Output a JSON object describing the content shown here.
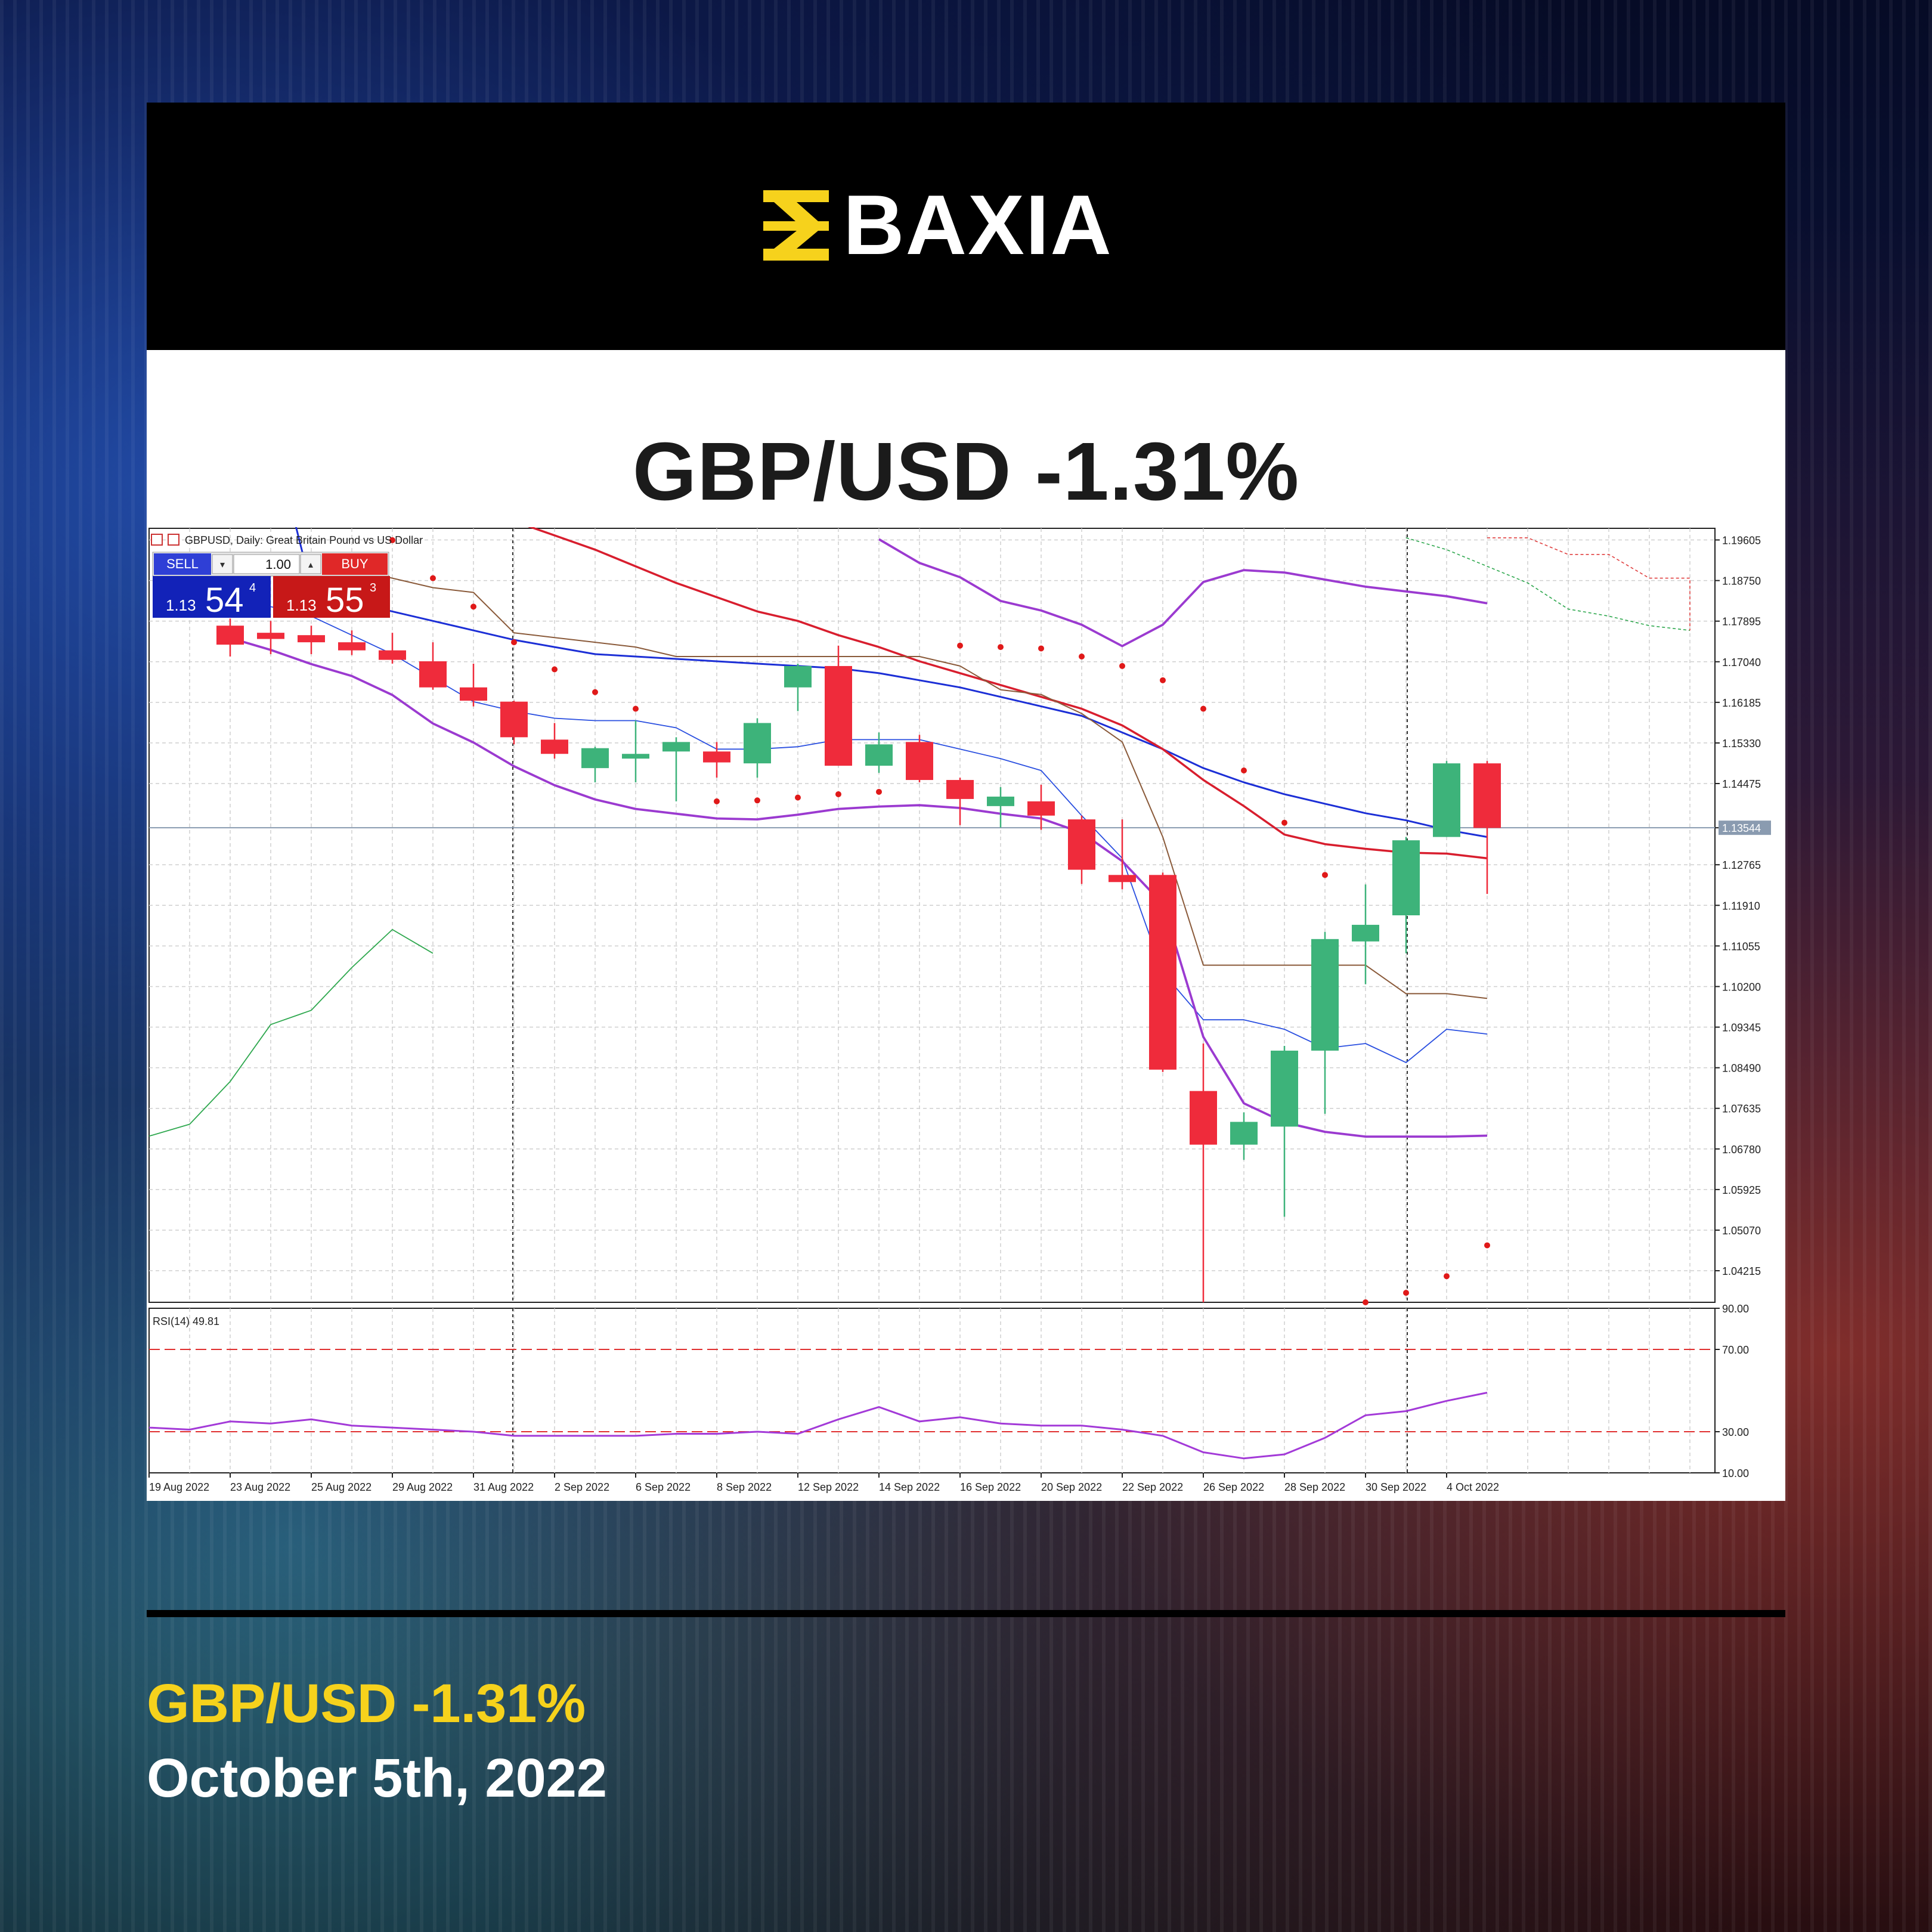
{
  "brand": {
    "name": "BAXIA",
    "logo_icon": "baxia-logo-icon",
    "accent": "#f6d21c"
  },
  "headline": "GBP/USD -1.31%",
  "footer": {
    "headline": "GBP/USD -1.31%",
    "date": "October 5th, 2022"
  },
  "terminal": {
    "chart_label": "GBPUSD, Daily:  Great Britain Pound vs US Dollar",
    "sell_label": "SELL",
    "buy_label": "BUY",
    "volume": "1.00",
    "sell_big": "1.13",
    "sell_pips": "54",
    "sell_frac": "4",
    "buy_big": "1.13",
    "buy_pips": "55",
    "buy_frac": "3",
    "current_price": "1.13544",
    "rsi_label": "RSI(14) 49.81"
  },
  "chart_data": {
    "type": "candlestick",
    "symbol": "GBPUSD",
    "timeframe": "Daily",
    "ylim": [
      1.0355,
      1.1985
    ],
    "price_ticks": [
      "1.19605",
      "1.18750",
      "1.17895",
      "1.17040",
      "1.16185",
      "1.15330",
      "1.14475",
      "1.13544",
      "1.12765",
      "1.11910",
      "1.11055",
      "1.10200",
      "1.09345",
      "1.08490",
      "1.07635",
      "1.06780",
      "1.05925",
      "1.05070",
      "1.04215"
    ],
    "x_labels": [
      "19 Aug 2022",
      "23 Aug 2022",
      "25 Aug 2022",
      "29 Aug 2022",
      "31 Aug 2022",
      "2 Sep 2022",
      "6 Sep 2022",
      "8 Sep 2022",
      "12 Sep 2022",
      "14 Sep 2022",
      "16 Sep 2022",
      "20 Sep 2022",
      "22 Sep 2022",
      "26 Sep 2022",
      "28 Sep 2022",
      "30 Sep 2022",
      "4 Oct 2022"
    ],
    "candles": [
      {
        "i": 2,
        "o": 1.178,
        "h": 1.1795,
        "l": 1.1715,
        "c": 1.174
      },
      {
        "i": 3,
        "o": 1.1765,
        "h": 1.179,
        "l": 1.172,
        "c": 1.1752
      },
      {
        "i": 4,
        "o": 1.176,
        "h": 1.178,
        "l": 1.172,
        "c": 1.1745
      },
      {
        "i": 5,
        "o": 1.1745,
        "h": 1.177,
        "l": 1.1718,
        "c": 1.1728
      },
      {
        "i": 6,
        "o": 1.1728,
        "h": 1.1765,
        "l": 1.17,
        "c": 1.1708
      },
      {
        "i": 7,
        "o": 1.1705,
        "h": 1.1745,
        "l": 1.1645,
        "c": 1.165
      },
      {
        "i": 8,
        "o": 1.165,
        "h": 1.17,
        "l": 1.161,
        "c": 1.1622
      },
      {
        "i": 9,
        "o": 1.162,
        "h": 1.1622,
        "l": 1.153,
        "c": 1.1545
      },
      {
        "i": 10,
        "o": 1.154,
        "h": 1.1575,
        "l": 1.15,
        "c": 1.151
      },
      {
        "i": 11,
        "o": 1.148,
        "h": 1.1525,
        "l": 1.145,
        "c": 1.1522
      },
      {
        "i": 12,
        "o": 1.15,
        "h": 1.158,
        "l": 1.145,
        "c": 1.151
      },
      {
        "i": 13,
        "o": 1.1515,
        "h": 1.1545,
        "l": 1.141,
        "c": 1.1535
      },
      {
        "i": 14,
        "o": 1.1515,
        "h": 1.1535,
        "l": 1.146,
        "c": 1.1492
      },
      {
        "i": 15,
        "o": 1.149,
        "h": 1.1585,
        "l": 1.146,
        "c": 1.1575
      },
      {
        "i": 16,
        "o": 1.165,
        "h": 1.17,
        "l": 1.16,
        "c": 1.1695
      },
      {
        "i": 17,
        "o": 1.1695,
        "h": 1.1738,
        "l": 1.1485,
        "c": 1.1485
      },
      {
        "i": 18,
        "o": 1.1485,
        "h": 1.1555,
        "l": 1.147,
        "c": 1.153
      },
      {
        "i": 19,
        "o": 1.1535,
        "h": 1.155,
        "l": 1.145,
        "c": 1.1455
      },
      {
        "i": 20,
        "o": 1.1455,
        "h": 1.146,
        "l": 1.136,
        "c": 1.1415
      },
      {
        "i": 21,
        "o": 1.14,
        "h": 1.144,
        "l": 1.1355,
        "c": 1.142
      },
      {
        "i": 22,
        "o": 1.141,
        "h": 1.1445,
        "l": 1.135,
        "c": 1.138
      },
      {
        "i": 23,
        "o": 1.1372,
        "h": 1.138,
        "l": 1.1236,
        "c": 1.1266
      },
      {
        "i": 24,
        "o": 1.1255,
        "h": 1.1372,
        "l": 1.1225,
        "c": 1.124
      },
      {
        "i": 25,
        "o": 1.1255,
        "h": 1.126,
        "l": 1.084,
        "c": 1.0845
      },
      {
        "i": 26,
        "o": 1.08,
        "h": 1.09,
        "l": 1.0355,
        "c": 1.0687
      },
      {
        "i": 27,
        "o": 1.0687,
        "h": 1.0755,
        "l": 1.0655,
        "c": 1.0735
      },
      {
        "i": 28,
        "o": 1.0725,
        "h": 1.0895,
        "l": 1.0535,
        "c": 1.0885
      },
      {
        "i": 29,
        "o": 1.0885,
        "h": 1.1135,
        "l": 1.0752,
        "c": 1.112
      },
      {
        "i": 30,
        "o": 1.1115,
        "h": 1.1235,
        "l": 1.1025,
        "c": 1.115
      },
      {
        "i": 31,
        "o": 1.117,
        "h": 1.1335,
        "l": 1.109,
        "c": 1.1328
      },
      {
        "i": 32,
        "o": 1.1335,
        "h": 1.1495,
        "l": 1.1335,
        "c": 1.149
      },
      {
        "i": 33,
        "o": 1.149,
        "h": 1.1495,
        "l": 1.1215,
        "c": 1.1354
      }
    ],
    "rsi": {
      "period": 14,
      "value": 49.81,
      "levels": [
        70,
        30
      ],
      "axis_ticks": [
        "90.00",
        "70.00",
        "30.00",
        "10.00"
      ],
      "ylim": [
        10,
        90
      ]
    }
  }
}
